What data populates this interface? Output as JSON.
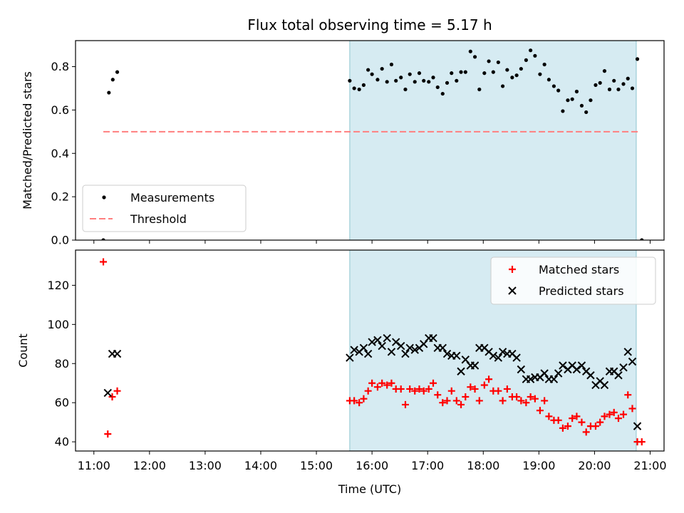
{
  "chart_data": [
    {
      "type": "scatter",
      "title": "Flux total observing time = 5.17 h",
      "xlabel": "",
      "ylabel": "Matched/Predicted stars",
      "ylim": [
        0,
        0.92
      ],
      "yticks": [
        "0.0",
        "0.2",
        "0.4",
        "0.6",
        "0.8"
      ],
      "xlim_hours": [
        10.67,
        21.25
      ],
      "shaded_region_hours": [
        15.6,
        20.75
      ],
      "shaded_color": "#add8e6",
      "legend": {
        "position": "lower-left",
        "entries": [
          "Measurements",
          "Threshold"
        ]
      },
      "series": [
        {
          "name": "Measurements",
          "marker": "dot",
          "color": "#000000",
          "points": [
            [
              11.17,
              0.0
            ],
            [
              11.27,
              0.68
            ],
            [
              11.34,
              0.74
            ],
            [
              11.42,
              0.775
            ],
            [
              15.6,
              0.735
            ],
            [
              15.68,
              0.7
            ],
            [
              15.77,
              0.695
            ],
            [
              15.85,
              0.715
            ],
            [
              15.93,
              0.785
            ],
            [
              16.0,
              0.765
            ],
            [
              16.1,
              0.74
            ],
            [
              16.18,
              0.79
            ],
            [
              16.27,
              0.73
            ],
            [
              16.35,
              0.81
            ],
            [
              16.43,
              0.735
            ],
            [
              16.52,
              0.75
            ],
            [
              16.6,
              0.695
            ],
            [
              16.68,
              0.765
            ],
            [
              16.77,
              0.73
            ],
            [
              16.85,
              0.77
            ],
            [
              16.93,
              0.735
            ],
            [
              17.02,
              0.73
            ],
            [
              17.1,
              0.75
            ],
            [
              17.18,
              0.705
            ],
            [
              17.27,
              0.675
            ],
            [
              17.35,
              0.725
            ],
            [
              17.43,
              0.77
            ],
            [
              17.52,
              0.735
            ],
            [
              17.6,
              0.775
            ],
            [
              17.68,
              0.775
            ],
            [
              17.77,
              0.87
            ],
            [
              17.85,
              0.845
            ],
            [
              17.93,
              0.695
            ],
            [
              18.02,
              0.77
            ],
            [
              18.1,
              0.825
            ],
            [
              18.18,
              0.775
            ],
            [
              18.27,
              0.82
            ],
            [
              18.35,
              0.71
            ],
            [
              18.43,
              0.785
            ],
            [
              18.52,
              0.75
            ],
            [
              18.6,
              0.76
            ],
            [
              18.68,
              0.79
            ],
            [
              18.77,
              0.83
            ],
            [
              18.85,
              0.875
            ],
            [
              18.93,
              0.85
            ],
            [
              19.02,
              0.765
            ],
            [
              19.1,
              0.81
            ],
            [
              19.18,
              0.74
            ],
            [
              19.27,
              0.71
            ],
            [
              19.35,
              0.69
            ],
            [
              19.43,
              0.595
            ],
            [
              19.52,
              0.645
            ],
            [
              19.6,
              0.65
            ],
            [
              19.68,
              0.685
            ],
            [
              19.77,
              0.62
            ],
            [
              19.85,
              0.59
            ],
            [
              19.93,
              0.645
            ],
            [
              20.02,
              0.715
            ],
            [
              20.1,
              0.725
            ],
            [
              20.18,
              0.78
            ],
            [
              20.27,
              0.695
            ],
            [
              20.35,
              0.735
            ],
            [
              20.43,
              0.695
            ],
            [
              20.52,
              0.72
            ],
            [
              20.6,
              0.745
            ],
            [
              20.68,
              0.7
            ],
            [
              20.77,
              0.835
            ],
            [
              20.85,
              0.0
            ]
          ]
        },
        {
          "name": "Threshold",
          "marker": "dashed-line",
          "color": "#ff7f7f",
          "line": [
            [
              11.17,
              0.5
            ],
            [
              20.8,
              0.5
            ]
          ]
        }
      ]
    },
    {
      "type": "scatter",
      "title": "",
      "xlabel": "Time (UTC)",
      "ylabel": "Count",
      "ylim": [
        35.3,
        138
      ],
      "yticks": [
        "40",
        "60",
        "80",
        "100",
        "120"
      ],
      "xlim_hours": [
        10.67,
        21.25
      ],
      "xticks": [
        "11:00",
        "12:00",
        "13:00",
        "14:00",
        "15:00",
        "16:00",
        "17:00",
        "18:00",
        "19:00",
        "20:00",
        "21:00"
      ],
      "shaded_region_hours": [
        15.6,
        20.75
      ],
      "shaded_color": "#add8e6",
      "legend": {
        "position": "top-right",
        "entries": [
          "Matched stars",
          "Predicted stars"
        ]
      },
      "series": [
        {
          "name": "Matched stars",
          "marker": "plus",
          "color": "#ff0000",
          "points": [
            [
              11.17,
              132
            ],
            [
              11.25,
              44
            ],
            [
              11.33,
              63
            ],
            [
              11.42,
              66
            ],
            [
              15.6,
              61
            ],
            [
              15.68,
              61
            ],
            [
              15.77,
              60
            ],
            [
              15.85,
              62
            ],
            [
              15.93,
              66
            ],
            [
              16.0,
              70
            ],
            [
              16.1,
              68
            ],
            [
              16.18,
              70
            ],
            [
              16.27,
              69
            ],
            [
              16.35,
              70
            ],
            [
              16.43,
              67
            ],
            [
              16.52,
              67
            ],
            [
              16.6,
              59
            ],
            [
              16.68,
              67
            ],
            [
              16.77,
              66
            ],
            [
              16.85,
              67
            ],
            [
              16.93,
              66
            ],
            [
              17.02,
              67
            ],
            [
              17.1,
              70
            ],
            [
              17.18,
              64
            ],
            [
              17.27,
              60
            ],
            [
              17.35,
              61
            ],
            [
              17.43,
              66
            ],
            [
              17.52,
              61
            ],
            [
              17.6,
              59
            ],
            [
              17.68,
              63
            ],
            [
              17.77,
              68
            ],
            [
              17.85,
              67
            ],
            [
              17.93,
              61
            ],
            [
              18.02,
              69
            ],
            [
              18.1,
              72
            ],
            [
              18.18,
              66
            ],
            [
              18.27,
              66
            ],
            [
              18.35,
              61
            ],
            [
              18.43,
              67
            ],
            [
              18.52,
              63
            ],
            [
              18.6,
              63
            ],
            [
              18.68,
              61
            ],
            [
              18.77,
              60
            ],
            [
              18.85,
              63
            ],
            [
              18.93,
              62
            ],
            [
              19.02,
              56
            ],
            [
              19.1,
              61
            ],
            [
              19.18,
              53
            ],
            [
              19.27,
              51
            ],
            [
              19.35,
              51
            ],
            [
              19.43,
              47
            ],
            [
              19.52,
              48
            ],
            [
              19.6,
              52
            ],
            [
              19.68,
              53
            ],
            [
              19.77,
              50
            ],
            [
              19.85,
              45
            ],
            [
              19.93,
              48
            ],
            [
              20.02,
              48
            ],
            [
              20.1,
              50
            ],
            [
              20.18,
              53
            ],
            [
              20.27,
              54
            ],
            [
              20.35,
              55
            ],
            [
              20.43,
              52
            ],
            [
              20.52,
              54
            ],
            [
              20.6,
              64
            ],
            [
              20.68,
              57
            ],
            [
              20.77,
              40
            ],
            [
              20.85,
              40
            ]
          ]
        },
        {
          "name": "Predicted stars",
          "marker": "x",
          "color": "#000000",
          "points": [
            [
              11.25,
              65
            ],
            [
              11.33,
              85
            ],
            [
              11.42,
              85
            ],
            [
              15.6,
              83
            ],
            [
              15.68,
              87
            ],
            [
              15.77,
              86
            ],
            [
              15.85,
              88
            ],
            [
              15.93,
              85
            ],
            [
              16.0,
              91
            ],
            [
              16.1,
              92
            ],
            [
              16.18,
              89
            ],
            [
              16.27,
              93
            ],
            [
              16.35,
              86
            ],
            [
              16.43,
              91
            ],
            [
              16.52,
              89
            ],
            [
              16.6,
              85
            ],
            [
              16.68,
              88
            ],
            [
              16.77,
              87
            ],
            [
              16.85,
              88
            ],
            [
              16.93,
              90
            ],
            [
              17.02,
              93
            ],
            [
              17.1,
              93
            ],
            [
              17.18,
              88
            ],
            [
              17.27,
              88
            ],
            [
              17.35,
              85
            ],
            [
              17.43,
              84
            ],
            [
              17.52,
              84
            ],
            [
              17.6,
              76
            ],
            [
              17.68,
              82
            ],
            [
              17.77,
              79
            ],
            [
              17.85,
              79
            ],
            [
              17.93,
              88
            ],
            [
              18.02,
              88
            ],
            [
              18.1,
              86
            ],
            [
              18.18,
              84
            ],
            [
              18.27,
              83
            ],
            [
              18.35,
              86
            ],
            [
              18.43,
              85
            ],
            [
              18.52,
              85
            ],
            [
              18.6,
              83
            ],
            [
              18.68,
              77
            ],
            [
              18.77,
              72
            ],
            [
              18.85,
              72
            ],
            [
              18.93,
              73
            ],
            [
              19.02,
              73
            ],
            [
              19.1,
              75
            ],
            [
              19.18,
              72
            ],
            [
              19.27,
              72
            ],
            [
              19.35,
              75
            ],
            [
              19.43,
              79
            ],
            [
              19.52,
              77
            ],
            [
              19.6,
              79
            ],
            [
              19.68,
              77
            ],
            [
              19.77,
              79
            ],
            [
              19.85,
              76
            ],
            [
              19.93,
              74
            ],
            [
              20.02,
              69
            ],
            [
              20.1,
              71
            ],
            [
              20.18,
              69
            ],
            [
              20.27,
              76
            ],
            [
              20.35,
              76
            ],
            [
              20.43,
              74
            ],
            [
              20.52,
              78
            ],
            [
              20.6,
              86
            ],
            [
              20.68,
              81
            ],
            [
              20.77,
              48
            ]
          ]
        }
      ]
    }
  ]
}
